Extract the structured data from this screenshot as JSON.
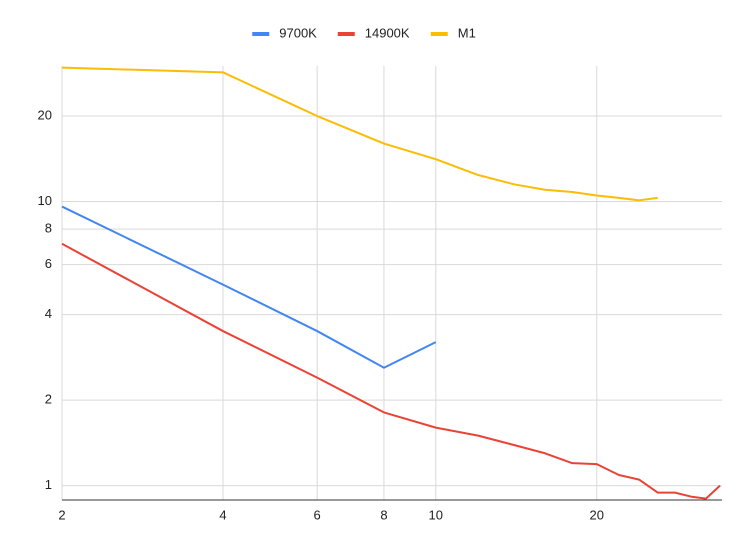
{
  "chart_data": {
    "type": "line",
    "x": [
      2,
      4,
      6,
      8,
      10,
      12,
      14,
      16,
      18,
      20,
      22,
      24,
      26,
      28,
      30,
      32,
      34
    ],
    "series": [
      {
        "name": "9700K",
        "color": "#4285f4",
        "values": [
          9.6,
          5.1,
          3.5,
          2.6,
          3.2,
          null,
          null,
          null,
          null,
          null,
          null,
          null,
          null,
          null,
          null,
          null,
          null
        ]
      },
      {
        "name": "14900K",
        "color": "#ea4335",
        "values": [
          7.1,
          3.5,
          2.4,
          1.81,
          1.6,
          1.5,
          1.39,
          1.3,
          1.2,
          1.19,
          1.09,
          1.05,
          0.945,
          0.945,
          0.915,
          0.9,
          1.0
        ]
      },
      {
        "name": "M1",
        "color": "#fbbc04",
        "values": [
          29.6,
          28.5,
          20,
          16,
          14.1,
          12.4,
          11.5,
          11,
          10.8,
          10.5,
          10.3,
          10.1,
          10.3,
          null,
          null,
          null,
          null
        ]
      }
    ],
    "xlim": [
      2,
      34
    ],
    "xticks": [
      2,
      4,
      6,
      8,
      10,
      20
    ],
    "ylim": [
      0.89,
      30
    ],
    "yticks": [
      1,
      2,
      4,
      6,
      8,
      10,
      20
    ],
    "xscale": "log",
    "yscale": "log",
    "grid": true,
    "legend": "top"
  }
}
